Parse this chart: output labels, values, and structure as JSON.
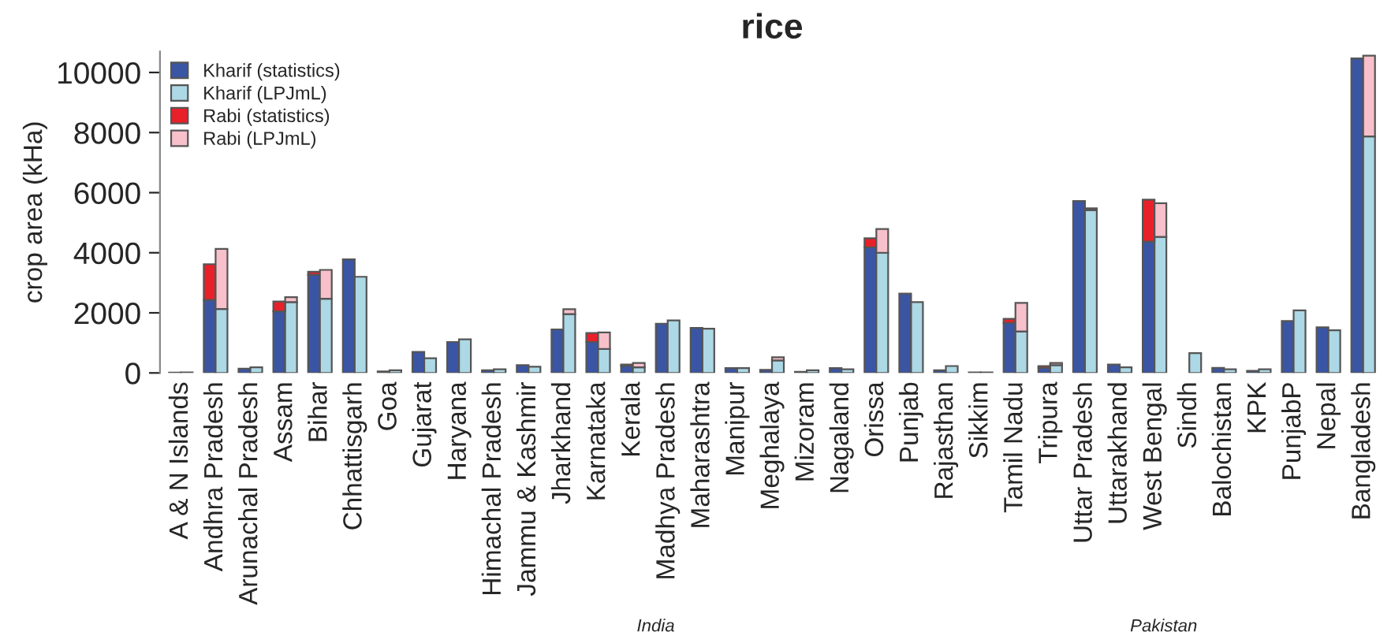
{
  "chart_data": {
    "type": "bar",
    "title": "rice",
    "ylabel": "crop area (kHa)",
    "categories": [
      "A & N Islands",
      "Andhra Pradesh",
      "Arunachal Pradesh",
      "Assam",
      "Bihar",
      "Chhattisgarh",
      "Goa",
      "Gujarat",
      "Haryana",
      "Himachal Pradesh",
      "Jammu & Kashmir",
      "Jharkhand",
      "Karnataka",
      "Kerala",
      "Madhya Pradesh",
      "Maharashtra",
      "Manipur",
      "Meghalaya",
      "Mizoram",
      "Nagaland",
      "Orissa",
      "Punjab",
      "Rajasthan",
      "Sikkim",
      "Tamil Nadu",
      "Tripura",
      "Uttar Pradesh",
      "Uttarakhand",
      "West Bengal",
      "Sindh",
      "Balochistan",
      "KPK",
      "PunjabP",
      "Nepal",
      "Bangladesh"
    ],
    "series": [
      {
        "name": "Kharif (statistics)",
        "color": "#3a55a4",
        "values": [
          10,
          2430,
          140,
          2050,
          3270,
          3780,
          50,
          700,
          1030,
          90,
          260,
          1450,
          1030,
          240,
          1640,
          1500,
          160,
          100,
          40,
          160,
          4180,
          2640,
          90,
          20,
          1660,
          170,
          5720,
          280,
          4370,
          null,
          170,
          70,
          1730,
          1520,
          10470
        ]
      },
      {
        "name": "Kharif (LPJmL)",
        "color": "#add8e6",
        "values": [
          20,
          2130,
          190,
          2360,
          2470,
          3200,
          90,
          490,
          1120,
          120,
          210,
          1960,
          800,
          190,
          1750,
          1470,
          160,
          420,
          90,
          120,
          4000,
          2360,
          230,
          20,
          1380,
          260,
          5420,
          190,
          4530,
          660,
          120,
          120,
          2080,
          1420,
          7870
        ]
      },
      {
        "name": "Rabi (statistics)",
        "color": "#e8202a",
        "base": [
          null,
          2430,
          null,
          2050,
          3270,
          null,
          null,
          null,
          null,
          null,
          null,
          null,
          1030,
          240,
          null,
          null,
          null,
          null,
          null,
          null,
          4180,
          null,
          null,
          null,
          1660,
          170,
          null,
          null,
          4370,
          null,
          null,
          null,
          null,
          null,
          null
        ],
        "values": [
          null,
          1190,
          null,
          330,
          100,
          null,
          null,
          null,
          null,
          null,
          null,
          null,
          300,
          40,
          null,
          null,
          null,
          null,
          null,
          null,
          300,
          null,
          null,
          null,
          140,
          60,
          null,
          null,
          1400,
          null,
          null,
          null,
          null,
          null,
          null
        ]
      },
      {
        "name": "Rabi (LPJmL)",
        "color": "#f7c0cb",
        "base": [
          null,
          2130,
          null,
          2360,
          2470,
          null,
          null,
          null,
          null,
          null,
          null,
          1960,
          800,
          190,
          null,
          null,
          null,
          420,
          null,
          null,
          4000,
          null,
          null,
          null,
          1380,
          260,
          5420,
          null,
          4530,
          null,
          null,
          null,
          null,
          null,
          7870
        ],
        "values": [
          null,
          2000,
          null,
          160,
          960,
          null,
          null,
          null,
          null,
          null,
          null,
          160,
          550,
          140,
          null,
          null,
          null,
          100,
          null,
          null,
          790,
          null,
          null,
          null,
          950,
          70,
          60,
          null,
          1120,
          null,
          null,
          null,
          null,
          null,
          2690
        ]
      }
    ],
    "ylim": [
      0,
      10700
    ],
    "yticks": [
      0,
      2000,
      4000,
      6000,
      8000,
      10000
    ],
    "legend": "top left",
    "annotations": [
      "India",
      "Pakistan"
    ]
  }
}
